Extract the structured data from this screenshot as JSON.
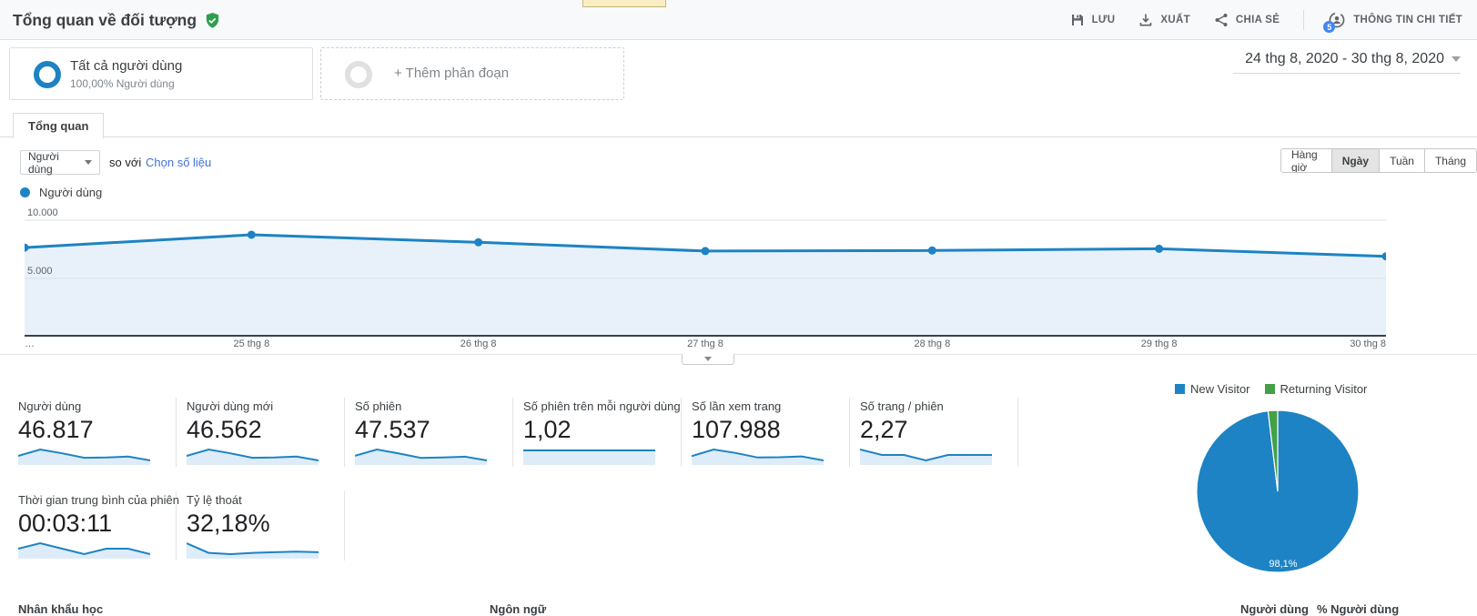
{
  "theme": {
    "accent_blue": "#1d83c4",
    "green": "#43a047",
    "spark_fill": "#ddecf8",
    "chart_fill": "#e8f1f9",
    "grid_color": "#d9e0e5",
    "link_blue": "#4272d9",
    "badge_blue": "#4285f4",
    "shield_green": "#2e9e4f"
  },
  "header": {
    "title": "Tổng quan về đối tượng",
    "actions": [
      {
        "label": "LƯU"
      },
      {
        "label": "XUẤT"
      },
      {
        "label": "CHIA SẺ"
      },
      {
        "label": "THÔNG TIN CHI TIẾT",
        "badge": "5"
      }
    ]
  },
  "segments": {
    "all_users_title": "Tất cả người dùng",
    "all_users_subtitle": "100,00% Người dùng",
    "add_segment_label": "+ Thêm phân đoạn"
  },
  "date_range": "24 thg 8, 2020 - 30 thg 8, 2020",
  "tab": "Tổng quan",
  "controls": {
    "metric_selector": "Người dùng",
    "vs_label": "so với",
    "choose_metric_link": "Chọn số liệu",
    "granularity": [
      {
        "label": "Hàng giờ",
        "active": false
      },
      {
        "label": "Ngày",
        "active": true
      },
      {
        "label": "Tuần",
        "active": false
      },
      {
        "label": "Tháng",
        "active": false
      }
    ]
  },
  "timeseries_legend": "Người dùng",
  "chart_data": [
    {
      "type": "line",
      "title": "Người dùng theo ngày",
      "x": [
        "24 thg 8, 2020",
        "25 thg 8, 2020",
        "26 thg 8, 2020",
        "27 thg 8, 2020",
        "28 thg 8, 2020",
        "29 thg 8, 2020",
        "30 thg 8, 2020"
      ],
      "x_labels_display": [
        "…",
        "25 thg 8",
        "26 thg 8",
        "27 thg 8",
        "28 thg 8",
        "29 thg 8",
        "30 thg 8"
      ],
      "series": [
        {
          "name": "Người dùng",
          "values": [
            7650,
            8750,
            8100,
            7350,
            7400,
            7550,
            6900
          ]
        }
      ],
      "ylim": [
        0,
        10000
      ],
      "yticks": [
        5000,
        10000
      ],
      "ytick_labels": [
        "5.000",
        "10.000"
      ],
      "grid": true,
      "legend_position": "top-left"
    },
    {
      "type": "pie",
      "labels": [
        "New Visitor",
        "Returning Visitor"
      ],
      "values": [
        98.1,
        1.9
      ],
      "colors": [
        "#1d83c4",
        "#43a047"
      ],
      "annotation": "98,1%",
      "legend_position": "top"
    }
  ],
  "metrics": {
    "row1": [
      {
        "label": "Người dùng",
        "value": "46.817",
        "spark": [
          7650,
          8750,
          8100,
          7350,
          7400,
          7550,
          6900
        ]
      },
      {
        "label": "Người dùng mới",
        "value": "46.562",
        "spark": [
          7600,
          8700,
          8050,
          7300,
          7350,
          7500,
          6850
        ]
      },
      {
        "label": "Số phiên",
        "value": "47.537",
        "spark": [
          7800,
          8900,
          8200,
          7450,
          7500,
          7650,
          7000
        ]
      },
      {
        "label": "Số phiên trên mỗi người dùng",
        "value": "1,02",
        "spark": [
          1.02,
          1.02,
          1.02,
          1.02,
          1.02,
          1.02,
          1.02
        ]
      },
      {
        "label": "Số lần xem trang",
        "value": "107.988",
        "spark": [
          17500,
          19800,
          18600,
          17000,
          17100,
          17400,
          16000
        ]
      },
      {
        "label": "Số trang / phiên",
        "value": "2,27",
        "spark": [
          2.28,
          2.27,
          2.27,
          2.26,
          2.27,
          2.27,
          2.27
        ]
      }
    ],
    "row2": [
      {
        "label": "Thời gian trung bình của phiên",
        "value": "00:03:11",
        "spark": [
          191,
          192,
          191,
          190,
          191,
          191,
          190
        ]
      },
      {
        "label": "Tỷ lệ thoát",
        "value": "32,18%",
        "spark": [
          33.5,
          32.0,
          31.8,
          32.0,
          32.1,
          32.2,
          32.1
        ]
      }
    ]
  },
  "bottom": {
    "demographics": "Nhân khẩu học",
    "language": "Ngôn ngữ",
    "users_col": "Người dùng",
    "users_pct_col": "% Người dùng"
  }
}
